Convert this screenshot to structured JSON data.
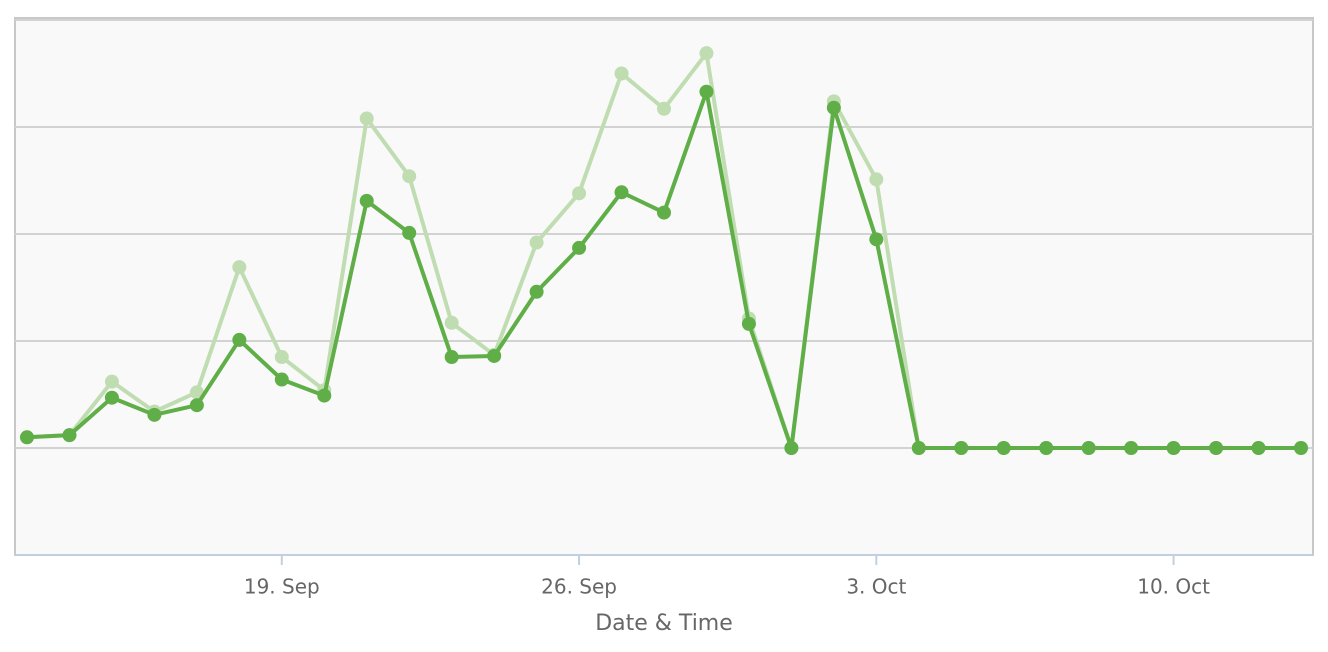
{
  "chart_data": {
    "type": "line",
    "x_label": "Date & Time",
    "categories": [
      null,
      null,
      null,
      null,
      null,
      null,
      "19. Sep",
      null,
      null,
      null,
      null,
      null,
      null,
      "26. Sep",
      null,
      null,
      null,
      null,
      null,
      null,
      "3. Oct",
      null,
      null,
      null,
      null,
      null,
      null,
      "10. Oct",
      null,
      null,
      null
    ],
    "series": [
      {
        "color": "#c0ddb2",
        "values": [
          0.1,
          0.12,
          0.62,
          0.34,
          0.52,
          1.69,
          0.85,
          0.54,
          3.08,
          2.54,
          1.17,
          0.87,
          1.92,
          2.38,
          3.5,
          3.17,
          3.69,
          1.21,
          0,
          3.24,
          2.51,
          0,
          0,
          0,
          0,
          0,
          0,
          0,
          0,
          0,
          0
        ]
      },
      {
        "color": "#5fae47",
        "values": [
          0.1,
          0.12,
          0.47,
          0.31,
          0.4,
          1.01,
          0.64,
          0.49,
          2.31,
          2.01,
          0.85,
          0.86,
          1.46,
          1.87,
          2.39,
          2.2,
          3.33,
          1.16,
          0,
          3.18,
          1.95,
          0,
          0,
          0,
          0,
          0,
          0,
          0,
          0,
          0,
          0
        ]
      }
    ],
    "ylim": [
      -1,
      4
    ],
    "yticks": [
      -1,
      0,
      1,
      2,
      3,
      4
    ],
    "grid": true
  }
}
